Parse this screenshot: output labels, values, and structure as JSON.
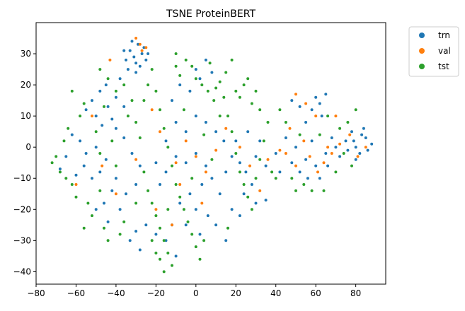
{
  "chart_data": {
    "type": "scatter",
    "title": "TSNE ProteinBERT",
    "xlabel": "",
    "ylabel": "",
    "xlim": [
      -80,
      95
    ],
    "ylim": [
      -44,
      40
    ],
    "xticks": [
      -80,
      -60,
      -40,
      -20,
      0,
      20,
      40,
      60,
      80
    ],
    "yticks": [
      -40,
      -30,
      -20,
      -10,
      0,
      10,
      20,
      30
    ],
    "grid": false,
    "legend_placement": "outside-upper-right",
    "series": [
      {
        "name": "trn",
        "color": "#1f77b4",
        "points": [
          [
            -33,
            31
          ],
          [
            -31,
            29
          ],
          [
            -29,
            33
          ],
          [
            -27,
            30
          ],
          [
            -35,
            28
          ],
          [
            -30,
            27
          ],
          [
            -26,
            32
          ],
          [
            -32,
            34
          ],
          [
            -28,
            26
          ],
          [
            -24,
            30
          ],
          [
            -36,
            31
          ],
          [
            -30,
            24
          ],
          [
            -25,
            28
          ],
          [
            -34,
            25
          ],
          [
            -48,
            18
          ],
          [
            -45,
            20
          ],
          [
            -40,
            16
          ],
          [
            -52,
            15
          ],
          [
            -44,
            13
          ],
          [
            -38,
            22
          ],
          [
            -42,
            9
          ],
          [
            -50,
            10
          ],
          [
            -55,
            12
          ],
          [
            -47,
            7
          ],
          [
            -36,
            13
          ],
          [
            -62,
            4
          ],
          [
            -58,
            2
          ],
          [
            -55,
            -2
          ],
          [
            -50,
            0
          ],
          [
            -45,
            -4
          ],
          [
            -48,
            -8
          ],
          [
            -52,
            -10
          ],
          [
            -56,
            -6
          ],
          [
            -60,
            -9
          ],
          [
            -65,
            -3
          ],
          [
            -68,
            -7
          ],
          [
            -40,
            -10
          ],
          [
            -42,
            -14
          ],
          [
            -46,
            -18
          ],
          [
            -50,
            -20
          ],
          [
            -44,
            -24
          ],
          [
            -38,
            -20
          ],
          [
            -35,
            -15
          ],
          [
            -30,
            -12
          ],
          [
            -28,
            -6
          ],
          [
            -32,
            -2
          ],
          [
            -36,
            3
          ],
          [
            -40,
            6
          ],
          [
            -25,
            -25
          ],
          [
            -30,
            -27
          ],
          [
            -33,
            -30
          ],
          [
            -28,
            -33
          ],
          [
            -20,
            -28
          ],
          [
            -15,
            -30
          ],
          [
            -10,
            -35
          ],
          [
            -12,
            -25
          ],
          [
            -20,
            -5
          ],
          [
            -15,
            -8
          ],
          [
            -10,
            -3
          ],
          [
            -5,
            -5
          ],
          [
            0,
            -2
          ],
          [
            5,
            -6
          ],
          [
            8,
            -10
          ],
          [
            3,
            -12
          ],
          [
            -3,
            -15
          ],
          [
            -8,
            -18
          ],
          [
            0,
            -20
          ],
          [
            6,
            -22
          ],
          [
            10,
            -25
          ],
          [
            2,
            -28
          ],
          [
            -5,
            -25
          ],
          [
            12,
            -15
          ],
          [
            15,
            -8
          ],
          [
            18,
            -3
          ],
          [
            14,
            2
          ],
          [
            10,
            5
          ],
          [
            5,
            8
          ],
          [
            0,
            10
          ],
          [
            -5,
            5
          ],
          [
            -10,
            8
          ],
          [
            -15,
            2
          ],
          [
            -18,
            -12
          ],
          [
            -12,
            15
          ],
          [
            -8,
            20
          ],
          [
            -3,
            18
          ],
          [
            2,
            22
          ],
          [
            5,
            28
          ],
          [
            0,
            25
          ],
          [
            8,
            24
          ],
          [
            20,
            2
          ],
          [
            22,
            -5
          ],
          [
            25,
            -8
          ],
          [
            28,
            -12
          ],
          [
            30,
            -3
          ],
          [
            32,
            2
          ],
          [
            35,
            -6
          ],
          [
            26,
            5
          ],
          [
            24,
            -15
          ],
          [
            18,
            -20
          ],
          [
            22,
            -22
          ],
          [
            30,
            -18
          ],
          [
            35,
            -17
          ],
          [
            15,
            -30
          ],
          [
            40,
            -2
          ],
          [
            42,
            -8
          ],
          [
            45,
            3
          ],
          [
            48,
            -5
          ],
          [
            50,
            0
          ],
          [
            52,
            -8
          ],
          [
            55,
            -4
          ],
          [
            58,
            2
          ],
          [
            60,
            -6
          ],
          [
            62,
            -10
          ],
          [
            65,
            -2
          ],
          [
            68,
            3
          ],
          [
            55,
            8
          ],
          [
            58,
            12
          ],
          [
            60,
            16
          ],
          [
            62,
            14
          ],
          [
            65,
            17
          ],
          [
            63,
            10
          ],
          [
            48,
            15
          ],
          [
            52,
            13
          ],
          [
            56,
            -10
          ],
          [
            66,
            -6
          ],
          [
            70,
            0
          ],
          [
            72,
            -3
          ],
          [
            75,
            2
          ],
          [
            78,
            5
          ],
          [
            80,
            0
          ],
          [
            82,
            -2
          ],
          [
            85,
            3
          ],
          [
            88,
            1
          ],
          [
            83,
            4
          ],
          [
            86,
            -1
          ],
          [
            80,
            -4
          ],
          [
            76,
            -1
          ],
          [
            84,
            6
          ],
          [
            79,
            2
          ]
        ]
      },
      {
        "name": "val",
        "color": "#ff7f0e",
        "points": [
          [
            -30,
            35
          ],
          [
            -28,
            33
          ],
          [
            -27,
            31
          ],
          [
            -25,
            32
          ],
          [
            -43,
            28
          ],
          [
            -52,
            10
          ],
          [
            -47,
            -6
          ],
          [
            -40,
            -15
          ],
          [
            -22,
            12
          ],
          [
            -30,
            -4
          ],
          [
            -10,
            -5
          ],
          [
            -5,
            2
          ],
          [
            0,
            -3
          ],
          [
            5,
            -8
          ],
          [
            10,
            -1
          ],
          [
            -12,
            -25
          ],
          [
            3,
            -18
          ],
          [
            -18,
            5
          ],
          [
            -8,
            -12
          ],
          [
            15,
            6
          ],
          [
            22,
            0
          ],
          [
            27,
            -6
          ],
          [
            32,
            -14
          ],
          [
            36,
            -4
          ],
          [
            42,
            -1
          ],
          [
            47,
            6
          ],
          [
            50,
            -6
          ],
          [
            54,
            2
          ],
          [
            57,
            -3
          ],
          [
            61,
            -8
          ],
          [
            64,
            -5
          ],
          [
            66,
            0
          ],
          [
            60,
            10
          ],
          [
            55,
            14
          ],
          [
            68,
            -2
          ],
          [
            72,
            1
          ],
          [
            77,
            4
          ],
          [
            81,
            -3
          ],
          [
            85,
            0
          ],
          [
            50,
            17
          ],
          [
            70,
            10
          ],
          [
            45,
            -2
          ],
          [
            -60,
            -12
          ],
          [
            -20,
            -20
          ]
        ]
      },
      {
        "name": "tst",
        "color": "#2ca02c",
        "points": [
          [
            -72,
            -5
          ],
          [
            -68,
            -8
          ],
          [
            -66,
            2
          ],
          [
            -64,
            6
          ],
          [
            -62,
            -12
          ],
          [
            -60,
            -16
          ],
          [
            -58,
            10
          ],
          [
            -56,
            14
          ],
          [
            -54,
            -18
          ],
          [
            -52,
            -22
          ],
          [
            -50,
            5
          ],
          [
            -48,
            -2
          ],
          [
            -46,
            -26
          ],
          [
            -44,
            -30
          ],
          [
            -42,
            2
          ],
          [
            -40,
            -6
          ],
          [
            -38,
            -28
          ],
          [
            -36,
            -24
          ],
          [
            -34,
            10
          ],
          [
            -32,
            15
          ],
          [
            -44,
            22
          ],
          [
            -40,
            18
          ],
          [
            -48,
            25
          ],
          [
            -36,
            20
          ],
          [
            -46,
            13
          ],
          [
            -30,
            8
          ],
          [
            -28,
            3
          ],
          [
            -26,
            -8
          ],
          [
            -24,
            -14
          ],
          [
            -22,
            -18
          ],
          [
            -20,
            -22
          ],
          [
            -18,
            -26
          ],
          [
            -16,
            -30
          ],
          [
            -14,
            -34
          ],
          [
            -12,
            -38
          ],
          [
            -20,
            -34
          ],
          [
            -18,
            -36
          ],
          [
            -16,
            -40
          ],
          [
            -22,
            -30
          ],
          [
            -26,
            15
          ],
          [
            -24,
            20
          ],
          [
            -22,
            25
          ],
          [
            -20,
            18
          ],
          [
            -18,
            12
          ],
          [
            -16,
            6
          ],
          [
            -14,
            0
          ],
          [
            -12,
            -6
          ],
          [
            -10,
            -12
          ],
          [
            -8,
            -16
          ],
          [
            -6,
            -20
          ],
          [
            -4,
            -24
          ],
          [
            -2,
            -28
          ],
          [
            0,
            -32
          ],
          [
            2,
            -36
          ],
          [
            4,
            -30
          ],
          [
            -5,
            28
          ],
          [
            -2,
            26
          ],
          [
            0,
            22
          ],
          [
            3,
            20
          ],
          [
            6,
            18
          ],
          [
            9,
            15
          ],
          [
            12,
            21
          ],
          [
            15,
            24
          ],
          [
            18,
            28
          ],
          [
            -8,
            23
          ],
          [
            -10,
            26
          ],
          [
            7,
            27
          ],
          [
            10,
            19
          ],
          [
            14,
            16
          ],
          [
            16,
            10
          ],
          [
            18,
            5
          ],
          [
            20,
            -2
          ],
          [
            22,
            -8
          ],
          [
            24,
            -12
          ],
          [
            26,
            -16
          ],
          [
            28,
            -20
          ],
          [
            30,
            -10
          ],
          [
            32,
            -4
          ],
          [
            34,
            2
          ],
          [
            36,
            8
          ],
          [
            38,
            -8
          ],
          [
            40,
            -10
          ],
          [
            20,
            18
          ],
          [
            22,
            16
          ],
          [
            24,
            20
          ],
          [
            28,
            14
          ],
          [
            30,
            18
          ],
          [
            26,
            22
          ],
          [
            32,
            12
          ],
          [
            42,
            12
          ],
          [
            45,
            8
          ],
          [
            48,
            -10
          ],
          [
            50,
            -14
          ],
          [
            52,
            4
          ],
          [
            54,
            -12
          ],
          [
            58,
            -14
          ],
          [
            62,
            4
          ],
          [
            64,
            -14
          ],
          [
            66,
            10
          ],
          [
            70,
            -8
          ],
          [
            72,
            6
          ],
          [
            74,
            -2
          ],
          [
            76,
            8
          ],
          [
            78,
            -6
          ],
          [
            80,
            12
          ],
          [
            -70,
            -3
          ],
          [
            -65,
            -10
          ],
          [
            -6,
            12
          ],
          [
            -2,
            -10
          ],
          [
            4,
            4
          ],
          [
            8,
            -4
          ],
          [
            12,
            10
          ],
          [
            -30,
            -18
          ],
          [
            -10,
            30
          ],
          [
            16,
            -26
          ],
          [
            -14,
            -20
          ],
          [
            -62,
            18
          ],
          [
            -56,
            -26
          ],
          [
            -48,
            -14
          ]
        ]
      }
    ]
  }
}
